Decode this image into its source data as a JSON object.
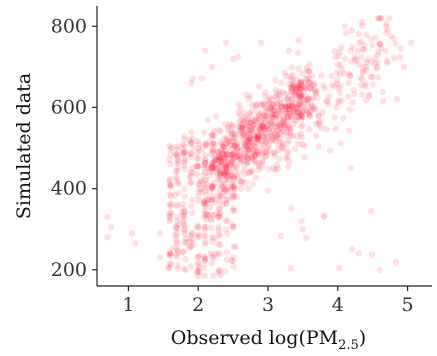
{
  "chart_data": {
    "type": "scatter",
    "title": "",
    "xlabel": "Observed log(PM",
    "xlabel_subscript": "2.5",
    "xlabel_close": ")",
    "ylabel": "Simulated data",
    "xlim": [
      0.55,
      5.35
    ],
    "ylim": [
      160,
      850
    ],
    "x_ticks": [
      1,
      2,
      3,
      4,
      5
    ],
    "y_ticks": [
      200,
      400,
      600,
      800
    ],
    "x_tick_labels": [
      "1",
      "2",
      "3",
      "4",
      "5"
    ],
    "y_tick_labels": [
      "200",
      "400",
      "600",
      "800"
    ],
    "grid": false,
    "legend": null,
    "point_color": "#ff1a33",
    "point_opacity": 0.13,
    "n_points": 1200,
    "description_of_distribution": "Dense positive-correlated cloud; vertical striping at low x",
    "series": [
      {
        "points": [
          [
            0.7,
            330
          ],
          [
            0.7,
            280
          ],
          [
            0.75,
            305
          ],
          [
            1.05,
            290
          ],
          [
            1.1,
            265
          ],
          [
            1.45,
            230
          ],
          [
            1.45,
            290
          ],
          [
            4.6,
            200
          ],
          [
            4.85,
            620
          ],
          [
            4.8,
            770
          ],
          [
            4.9,
            745
          ],
          [
            4.95,
            700
          ],
          [
            5.05,
            760
          ],
          [
            4.35,
            810
          ],
          [
            4.2,
            790
          ],
          [
            4.1,
            800
          ],
          [
            3.7,
            640
          ],
          [
            3.6,
            690
          ],
          [
            4.3,
            240
          ],
          [
            3.8,
            330
          ],
          [
            3.5,
            300
          ],
          [
            2.4,
            760
          ],
          [
            2.5,
            720
          ],
          [
            2.9,
            760
          ],
          [
            2.1,
            740
          ],
          [
            1.9,
            660
          ],
          [
            2.2,
            700
          ],
          [
            3.3,
            740
          ]
        ]
      }
    ]
  }
}
